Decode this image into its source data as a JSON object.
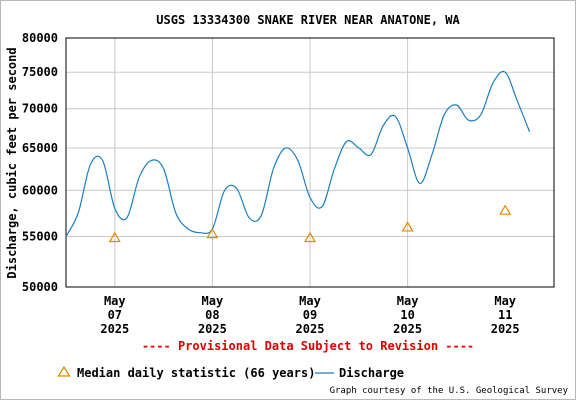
{
  "colors": {
    "discharge": "#1a7fc0",
    "median": "#e08a00",
    "grid": "#c8c8c8",
    "warning": "#dd0000"
  },
  "legend": {
    "median_label": "Median daily statistic (66 years)",
    "discharge_label": "Discharge",
    "median_icon": "triangle-icon",
    "discharge_icon": "line-swatch-icon"
  },
  "provisional_note": "---- Provisional Data Subject to Revision ----",
  "credit": "Graph courtesy of the U.S. Geological Survey",
  "chart_data": {
    "type": "line",
    "title": "USGS 13334300 SNAKE RIVER NEAR ANATONE, WA",
    "ylabel": "Discharge, cubic feet per second",
    "xlabel": "",
    "y_scale": "log",
    "ylim": [
      50000,
      80000
    ],
    "y_ticks": [
      "50000",
      "55000",
      "60000",
      "65000",
      "70000",
      "75000",
      "80000"
    ],
    "x_tick_labels": [
      {
        "month": "May",
        "day": "07",
        "year": "2025"
      },
      {
        "month": "May",
        "day": "08",
        "year": "2025"
      },
      {
        "month": "May",
        "day": "09",
        "year": "2025"
      },
      {
        "month": "May",
        "day": "10",
        "year": "2025"
      },
      {
        "month": "May",
        "day": "11",
        "year": "2025"
      }
    ],
    "xlim": [
      "2025-05-06 12:00",
      "2025-05-11 12:00"
    ],
    "grid": true,
    "legend_position": "bottom",
    "series": [
      {
        "name": "Discharge",
        "x": [
          "2025-05-06 12:00",
          "2025-05-06 15:00",
          "2025-05-06 18:00",
          "2025-05-06 21:00",
          "2025-05-07 00:00",
          "2025-05-07 03:00",
          "2025-05-07 06:00",
          "2025-05-07 09:00",
          "2025-05-07 12:00",
          "2025-05-07 15:00",
          "2025-05-07 18:00",
          "2025-05-07 21:00",
          "2025-05-08 00:00",
          "2025-05-08 03:00",
          "2025-05-08 06:00",
          "2025-05-08 09:00",
          "2025-05-08 12:00",
          "2025-05-08 15:00",
          "2025-05-08 18:00",
          "2025-05-08 21:00",
          "2025-05-09 00:00",
          "2025-05-09 03:00",
          "2025-05-09 06:00",
          "2025-05-09 09:00",
          "2025-05-09 12:00",
          "2025-05-09 15:00",
          "2025-05-09 18:00",
          "2025-05-09 21:00",
          "2025-05-10 00:00",
          "2025-05-10 03:00",
          "2025-05-10 06:00",
          "2025-05-10 09:00",
          "2025-05-10 12:00",
          "2025-05-10 15:00",
          "2025-05-10 18:00",
          "2025-05-10 21:00",
          "2025-05-11 00:00",
          "2025-05-11 03:00",
          "2025-05-11 06:00"
        ],
        "values": [
          55000,
          57500,
          63000,
          63500,
          58000,
          57000,
          61500,
          63500,
          62500,
          57500,
          55800,
          55400,
          55800,
          60000,
          60200,
          57000,
          57200,
          62500,
          65000,
          63500,
          59200,
          58200,
          62500,
          65800,
          65000,
          64200,
          67800,
          69000,
          65000,
          60800,
          64200,
          69200,
          70500,
          68500,
          69200,
          73500,
          75000,
          71000,
          67000
        ]
      },
      {
        "name": "Median daily statistic (66 years)",
        "x": [
          "2025-05-07 00:00",
          "2025-05-08 00:00",
          "2025-05-09 00:00",
          "2025-05-10 00:00",
          "2025-05-11 00:00"
        ],
        "values": [
          54900,
          55300,
          54900,
          56000,
          57800
        ]
      }
    ]
  }
}
